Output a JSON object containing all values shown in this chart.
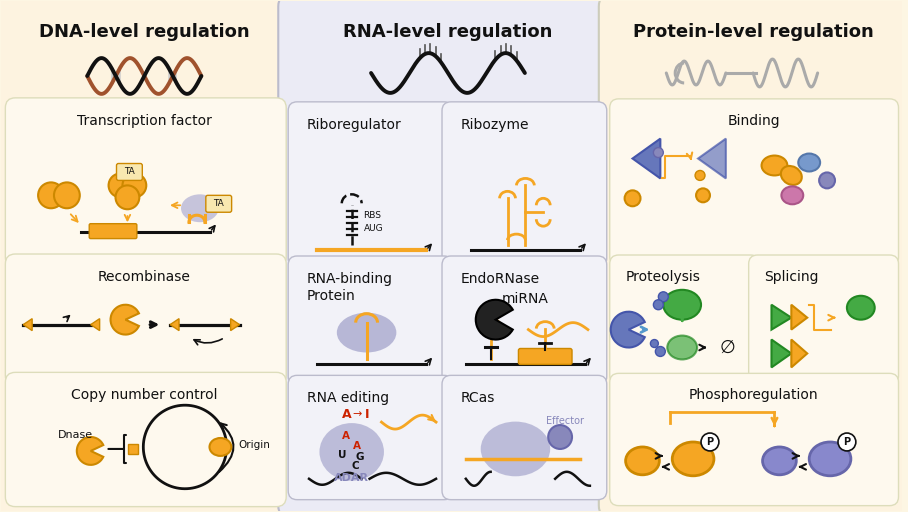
{
  "bg_color": "#fdf6e3",
  "dna_panel_bg": "#fdf3e0",
  "rna_panel_bg": "#ebebf5",
  "protein_panel_bg": "#fdf3e0",
  "inner_bg_dna": "#fef9ee",
  "inner_bg_rna": "#f2f2f8",
  "inner_bg_protein": "#fef9ee",
  "orange": "#F5A623",
  "brown": "#A0522D",
  "blue_gray": "#8888bb",
  "green": "#44aa44",
  "blue": "#5599cc",
  "purple_blue": "#6677bb",
  "red": "#cc2200",
  "black": "#111111",
  "gray": "#888888",
  "title_dna": "DNA-level regulation",
  "title_rna": "RNA-level regulation",
  "title_protein": "Protein-level regulation"
}
